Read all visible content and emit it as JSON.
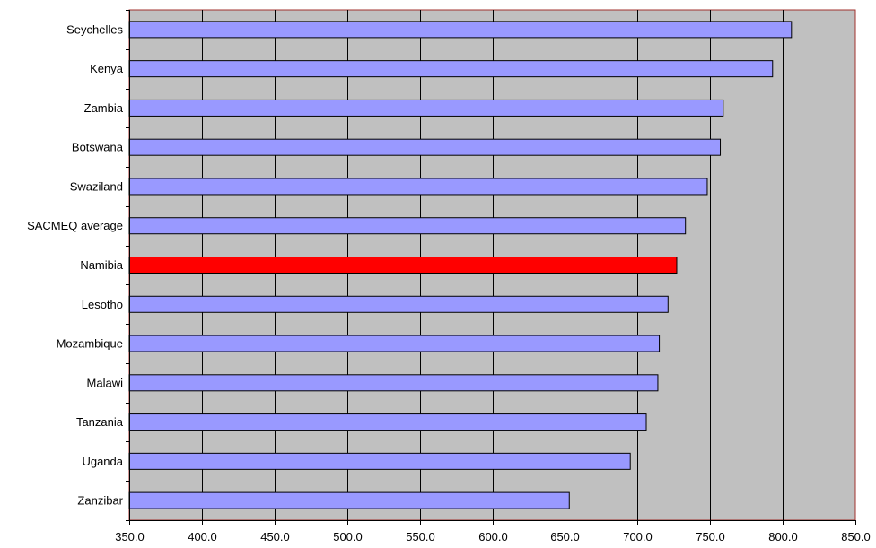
{
  "chart_data": {
    "type": "bar",
    "orientation": "horizontal",
    "categories": [
      "Seychelles",
      "Kenya",
      "Zambia",
      "Botswana",
      "Swaziland",
      "SACMEQ average",
      "Namibia",
      "Lesotho",
      "Mozambique",
      "Malawi",
      "Tanzania",
      "Uganda",
      "Zanzibar"
    ],
    "values": [
      806,
      793,
      759,
      757,
      748,
      733,
      727,
      721,
      715,
      714,
      706,
      695,
      653
    ],
    "highlight": "Namibia",
    "xlim": [
      350,
      850
    ],
    "xticks": [
      "350.0",
      "400.0",
      "450.0",
      "500.0",
      "550.0",
      "600.0",
      "650.0",
      "700.0",
      "750.0",
      "800.0",
      "850.0"
    ],
    "grid": true,
    "title": "",
    "xlabel": "",
    "ylabel": ""
  },
  "colors": {
    "bar": "#9999ff",
    "highlight": "#ff0000",
    "plot_background": "#c0c0c0",
    "plot_border": "#a0302c"
  }
}
